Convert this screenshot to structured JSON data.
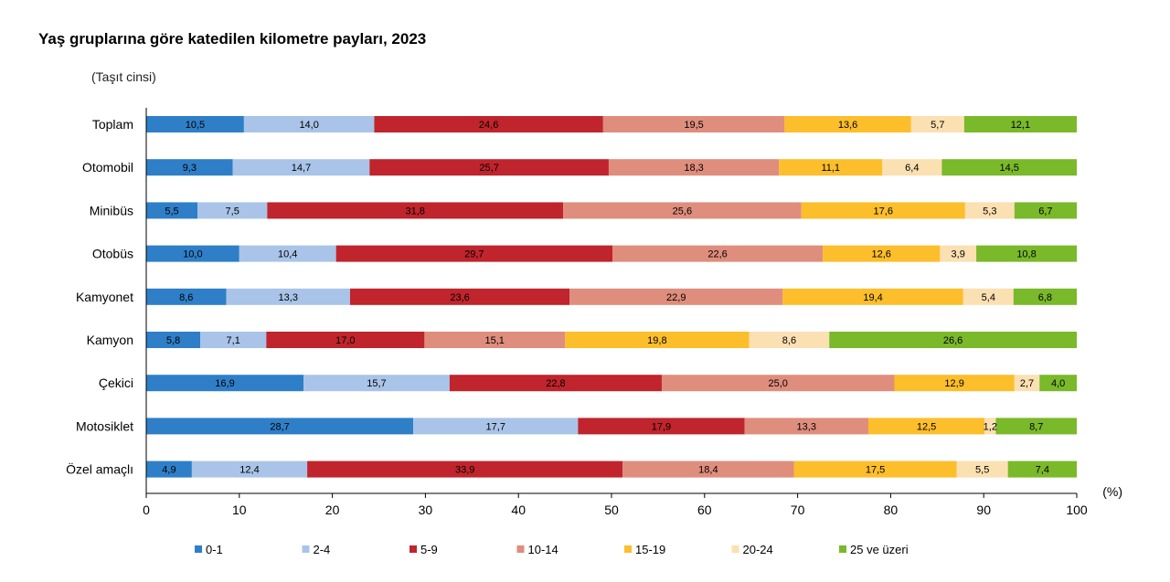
{
  "chart_data": {
    "type": "bar",
    "orientation": "horizontal",
    "stacked": true,
    "title": "Yaş gruplarına göre katedilen kilometre payları, 2023",
    "subtitle": "(Taşıt cinsi)",
    "unit_label": "(%)",
    "xlim": [
      0,
      100
    ],
    "xticks": [
      0,
      10,
      20,
      30,
      40,
      50,
      60,
      70,
      80,
      90,
      100
    ],
    "categories": [
      "Toplam",
      "Otomobil",
      "Minibüs",
      "Otobüs",
      "Kamyonet",
      "Kamyon",
      "Çekici",
      "Motosiklet",
      "Özel amaçlı"
    ],
    "series": [
      {
        "name": "0-1",
        "color": "#2e7fc8",
        "values": [
          10.5,
          9.3,
          5.5,
          10.0,
          8.6,
          5.8,
          16.9,
          28.7,
          4.9
        ],
        "labels": [
          "10,5",
          "9,3",
          "5,5",
          "10,0",
          "8,6",
          "5,8",
          "16,9",
          "28,7",
          "4,9"
        ]
      },
      {
        "name": "2-4",
        "color": "#a9c4e8",
        "values": [
          14.0,
          14.7,
          7.5,
          10.4,
          13.3,
          7.1,
          15.7,
          17.7,
          12.4
        ],
        "labels": [
          "14,0",
          "14,7",
          "7,5",
          "10,4",
          "13,3",
          "7,1",
          "15,7",
          "17,7",
          "12,4"
        ]
      },
      {
        "name": "5-9",
        "color": "#c0242c",
        "values": [
          24.6,
          25.7,
          31.8,
          29.7,
          23.6,
          17.0,
          22.8,
          17.9,
          33.9
        ],
        "labels": [
          "24,6",
          "25,7",
          "31,8",
          "29,7",
          "23,6",
          "17,0",
          "22,8",
          "17,9",
          "33,9"
        ]
      },
      {
        "name": "10-14",
        "color": "#df8d7d",
        "values": [
          19.5,
          18.3,
          25.6,
          22.6,
          22.9,
          15.1,
          25.0,
          13.3,
          18.4
        ],
        "labels": [
          "19,5",
          "18,3",
          "25,6",
          "22,6",
          "22,9",
          "15,1",
          "25,0",
          "13,3",
          "18,4"
        ]
      },
      {
        "name": "15-19",
        "color": "#fcbe2b",
        "values": [
          13.6,
          11.1,
          17.6,
          12.6,
          19.4,
          19.8,
          12.9,
          12.5,
          17.5
        ],
        "labels": [
          "13,6",
          "11,1",
          "17,6",
          "12,6",
          "19,4",
          "19,8",
          "12,9",
          "12,5",
          "17,5"
        ]
      },
      {
        "name": "20-24",
        "color": "#fbe0b2",
        "values": [
          5.7,
          6.4,
          5.3,
          3.9,
          5.4,
          8.6,
          2.7,
          1.2,
          5.5
        ],
        "labels": [
          "5,7",
          "6,4",
          "5,3",
          "3,9",
          "5,4",
          "8,6",
          "2,7",
          "1,2",
          "5,5"
        ]
      },
      {
        "name": "25 ve üzeri",
        "color": "#7ab929",
        "values": [
          12.1,
          14.5,
          6.7,
          10.8,
          6.8,
          26.6,
          4.0,
          8.7,
          7.4
        ],
        "labels": [
          "12,1",
          "14,5",
          "6,7",
          "10,8",
          "6,8",
          "26,6",
          "4,0",
          "8,7",
          "7,4"
        ]
      }
    ],
    "legend_position": "bottom",
    "grid": false
  }
}
